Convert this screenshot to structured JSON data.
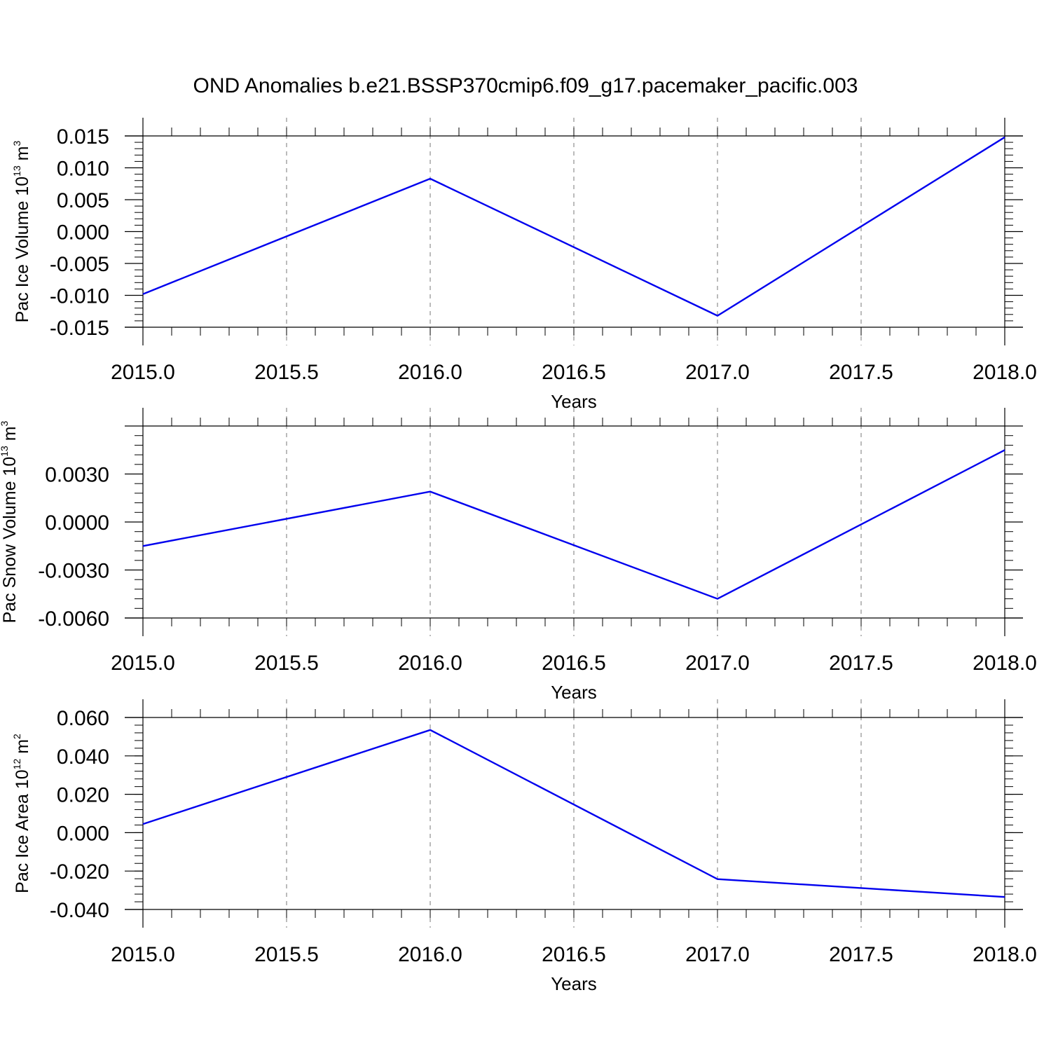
{
  "title": "OND Anomalies b.e21.BSSP370cmip6.f09_g17.pacemaker_pacific.003",
  "colors": {
    "series": "#0000ee",
    "axis": "#000000",
    "grid": "#777777"
  },
  "chart_data": [
    {
      "type": "line",
      "xlabel": "Years",
      "ylabel": {
        "prefix": "Pac Ice Volume 10",
        "exp": "13",
        "unit": " m",
        "unit_exp": "3"
      },
      "x": [
        2015,
        2016,
        2017,
        2018
      ],
      "series": [
        {
          "values": [
            -0.0098,
            0.0083,
            -0.0132,
            0.0148
          ]
        }
      ],
      "xlim": [
        2015.0,
        2018.0
      ],
      "ylim": [
        -0.015,
        0.015
      ],
      "xticks": [
        "2015.0",
        "2015.5",
        "2016.0",
        "2016.5",
        "2017.0",
        "2017.5",
        "2018.0"
      ],
      "yticks": [
        "-0.015",
        "-0.010",
        "-0.005",
        "0.000",
        "0.005",
        "0.010",
        "0.015"
      ],
      "grid": "x-dashed"
    },
    {
      "type": "line",
      "xlabel": "Years",
      "ylabel": {
        "prefix": "Pac Snow Volume 10",
        "exp": "13",
        "unit": " m",
        "unit_exp": "3"
      },
      "x": [
        2015,
        2016,
        2017,
        2018
      ],
      "series": [
        {
          "values": [
            -0.0015,
            0.0019,
            -0.0048,
            0.0045
          ]
        }
      ],
      "xlim": [
        2015.0,
        2018.0
      ],
      "ylim": [
        -0.006,
        0.006
      ],
      "xticks": [
        "2015.0",
        "2015.5",
        "2016.0",
        "2016.5",
        "2017.0",
        "2017.5",
        "2018.0"
      ],
      "yticks": [
        "-0.0060",
        "-0.0030",
        "0.0000",
        "0.0030"
      ],
      "grid": "x-dashed"
    },
    {
      "type": "line",
      "xlabel": "Years",
      "ylabel": {
        "prefix": "Pac Ice Area 10",
        "exp": "12",
        "unit": " m",
        "unit_exp": "2"
      },
      "x": [
        2015,
        2016,
        2017,
        2018
      ],
      "series": [
        {
          "values": [
            0.0045,
            0.0535,
            -0.0242,
            -0.0335
          ]
        }
      ],
      "xlim": [
        2015.0,
        2018.0
      ],
      "ylim": [
        -0.04,
        0.06
      ],
      "xticks": [
        "2015.0",
        "2015.5",
        "2016.0",
        "2016.5",
        "2017.0",
        "2017.5",
        "2018.0"
      ],
      "yticks": [
        "-0.040",
        "-0.020",
        "0.000",
        "0.020",
        "0.040",
        "0.060"
      ],
      "grid": "x-dashed"
    }
  ]
}
